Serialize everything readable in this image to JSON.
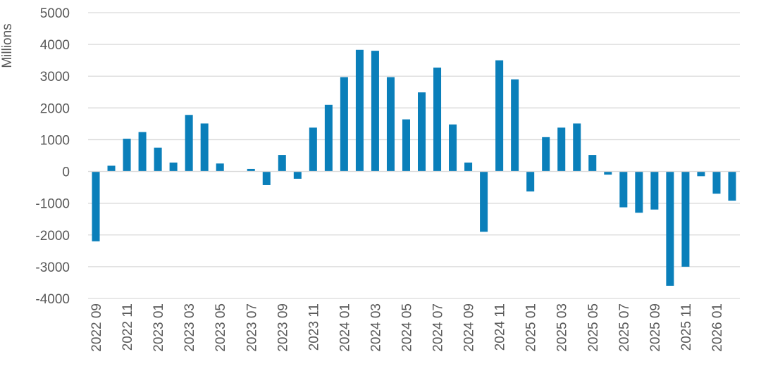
{
  "chart_data": {
    "type": "bar",
    "ylabel": "Millions",
    "ylim": [
      -4000,
      5000
    ],
    "yticks": [
      5000,
      4000,
      3000,
      2000,
      1000,
      0,
      -1000,
      -2000,
      -3000,
      -4000
    ],
    "grid": true,
    "color": "#0a7fba",
    "categories": [
      "2022 09",
      "2022 10",
      "2022 11",
      "2022 12",
      "2023 01",
      "2023 02",
      "2023 03",
      "2023 04",
      "2023 05",
      "2023 06",
      "2023 07",
      "2023 08",
      "2023 09",
      "2023 10",
      "2023 11",
      "2023 12",
      "2024 01",
      "2024 02",
      "2024 03",
      "2024 04",
      "2024 05",
      "2024 06",
      "2024 07",
      "2024 08",
      "2024 09",
      "2024 10",
      "2024 11",
      "2024 12",
      "2025 01",
      "2025 02",
      "2025 03",
      "2025 04",
      "2025 05",
      "2025 06",
      "2025 07",
      "2025 08",
      "2025 09",
      "2025 10",
      "2025 11",
      "2025 12",
      "2026 01",
      "2026 02"
    ],
    "xticklabels": [
      "2022 09",
      "2022 11",
      "2023 01",
      "2023 03",
      "2023 05",
      "2023 07",
      "2023 09",
      "2023 11",
      "2024 01",
      "2024 03",
      "2024 05",
      "2024 07",
      "2024 09",
      "2024 11",
      "2025 01",
      "2025 03",
      "2025 05",
      "2025 07",
      "2025 09",
      "2025 11",
      "2026 01"
    ],
    "values": [
      -2200,
      180,
      1030,
      1240,
      750,
      280,
      1780,
      1510,
      250,
      0,
      80,
      -430,
      520,
      -230,
      1380,
      2100,
      2970,
      3830,
      3800,
      2970,
      1640,
      2490,
      3270,
      1480,
      280,
      -1900,
      3500,
      2900,
      -630,
      1080,
      1380,
      1510,
      520,
      -100,
      -1130,
      -1300,
      -1200,
      -3600,
      -3000,
      -150,
      -700,
      -920
    ]
  }
}
